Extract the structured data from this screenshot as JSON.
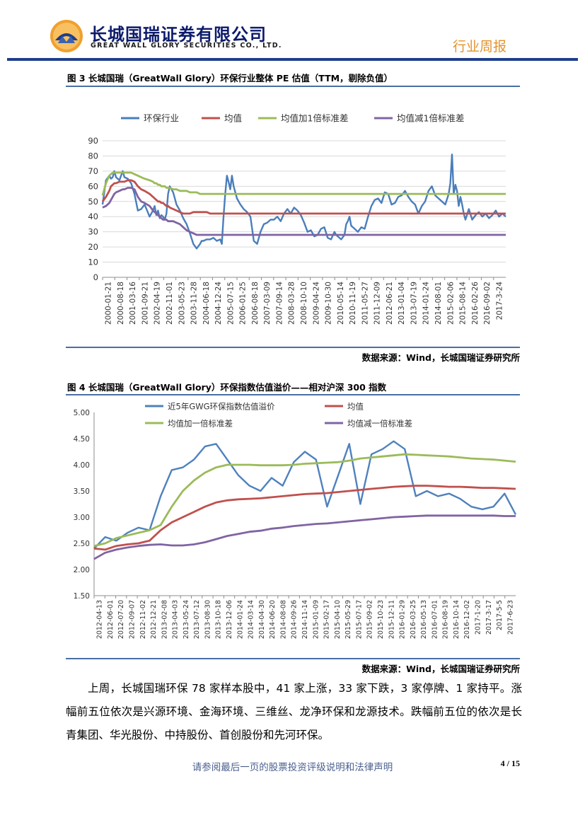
{
  "header": {
    "company_cn": "长城国瑞证券有限公司",
    "company_en": "GREAT WALL GLORY SECURITIES CO., LTD.",
    "report_type": "行业周报",
    "colors": {
      "brand_blue": "#1f3e8c",
      "accent_orange": "#e3932c"
    }
  },
  "figure3": {
    "title": "图 3 长城国瑞（GreatWall Glory）环保行业整体 PE 估值（TTM，剔除负值）",
    "source": "数据来源：Wind，长城国瑞证券研究所",
    "legend": [
      "环保行业",
      "均值",
      "均值加1倍标准差",
      "均值减1倍标准差"
    ]
  },
  "figure4": {
    "title": "图 4 长城国瑞（GreatWall Glory）环保指数估值溢价——相对沪深 300 指数",
    "source": "数据来源：Wind，长城国瑞证券研究所",
    "legend": [
      "近5年GWG环保指数估值溢价",
      "均值",
      "均值加一倍标准差",
      "均值减一倍标准差"
    ]
  },
  "body": {
    "paragraph": "上周，长城国瑞环保 78 家样本股中，41 家上涨，33 家下跌，3 家停牌、1 家持平。涨幅前五位依次是兴源环境、金海环境、三维丝、龙净环保和龙源技术。跌幅前五位的依次是长青集团、华光股份、中持股份、首创股份和先河环保。"
  },
  "footer": {
    "disclaimer": "请参阅最后一页的股票投资评级说明和法律声明",
    "page": "4 / 15"
  },
  "chart_data": [
    {
      "type": "line",
      "id": "fig3",
      "title": "环保行业整体 PE 估值（TTM，剔除负值）",
      "ylim": [
        0,
        90
      ],
      "yticks": [
        0,
        10,
        20,
        30,
        40,
        50,
        60,
        70,
        80,
        90
      ],
      "grid": true,
      "legend_position": "top",
      "categories": [
        "2000-01-21",
        "2000-08-18",
        "2001-03-16",
        "2001-09-21",
        "2002-04-19",
        "2002-11-01",
        "2003-05-23",
        "2003-11-28",
        "2004-06-18",
        "2004-12-24",
        "2005-07-15",
        "2006-01-25",
        "2006-08-18",
        "2007-03-09",
        "2007-09-14",
        "2008-03-28",
        "2008-10-10",
        "2009-04-24",
        "2009-10-30",
        "2010-05-14",
        "2010-11-19",
        "2011-05-27",
        "2011-12-09",
        "2012-06-21",
        "2013-01-04",
        "2013-07-19",
        "2014-01-24",
        "2014-08-01",
        "2015-02-06",
        "2015-08-14",
        "2016-02-26",
        "2016-09-02",
        "2017-3-24"
      ],
      "x": [
        0,
        2,
        4,
        5,
        6,
        7,
        8,
        10,
        12,
        13,
        15,
        17,
        19,
        21,
        23,
        25,
        28,
        30,
        31,
        32,
        33,
        34,
        35,
        36,
        37,
        38,
        39,
        40,
        42,
        44,
        46,
        48,
        50,
        52,
        54,
        56,
        58,
        59,
        60,
        62,
        64,
        66,
        68,
        70,
        71,
        72,
        73,
        74,
        75,
        76,
        77,
        78,
        80,
        82,
        84,
        86,
        88,
        90,
        92,
        94,
        96,
        98,
        100,
        102,
        104,
        106,
        108,
        110,
        112,
        114,
        116,
        118,
        120,
        122,
        124,
        126,
        128,
        130,
        132,
        134,
        136,
        138,
        139,
        140,
        142,
        144,
        145,
        146,
        147,
        148,
        150,
        152,
        154,
        156,
        158,
        160,
        162,
        164,
        166,
        168,
        170,
        172,
        174,
        176,
        178,
        180,
        182,
        184,
        186,
        188,
        190,
        192,
        194,
        196,
        198,
        200,
        202,
        204,
        206,
        207,
        208,
        209,
        210,
        211,
        212,
        213,
        214,
        215,
        216,
        218,
        220,
        222,
        224,
        226,
        228,
        230,
        232,
        234,
        236,
        238,
        240
      ],
      "series": [
        {
          "name": "环保行业",
          "color": "#4a7ebb",
          "values": [
            48,
            64,
            67,
            65,
            66,
            70,
            66,
            64,
            70,
            66,
            65,
            62,
            55,
            44,
            45,
            48,
            40,
            44,
            47,
            41,
            44,
            39,
            41,
            40,
            38,
            42,
            55,
            60,
            56,
            48,
            44,
            39,
            35,
            29,
            22,
            19,
            22,
            24,
            24,
            25,
            25,
            26,
            24,
            25,
            22,
            40,
            55,
            67,
            63,
            58,
            67,
            60,
            52,
            48,
            45,
            43,
            40,
            24,
            22,
            30,
            35,
            36,
            38,
            38,
            40,
            37,
            42,
            45,
            42,
            46,
            44,
            41,
            36,
            30,
            31,
            27,
            28,
            32,
            33,
            26,
            25,
            30,
            28,
            27,
            25,
            28,
            35,
            37,
            40,
            34,
            32,
            30,
            33,
            32,
            40,
            47,
            51,
            52,
            49,
            56,
            55,
            48,
            49,
            53,
            54,
            57,
            53,
            50,
            48,
            42,
            47,
            50,
            57,
            60,
            54,
            52,
            50,
            48,
            55,
            62,
            81,
            55,
            61,
            57,
            47,
            53,
            48,
            42,
            38,
            45,
            38,
            41,
            43,
            40,
            42,
            39,
            41,
            44,
            40,
            42,
            40
          ]
        },
        {
          "name": "均值",
          "color": "#c0504d",
          "values": [
            50,
            53,
            57,
            60,
            61,
            62,
            62,
            63,
            63,
            63,
            64,
            64,
            63,
            60,
            58,
            57,
            55,
            53,
            52,
            51,
            50,
            50,
            49,
            49,
            48,
            47,
            47,
            46,
            45,
            44,
            43,
            42,
            42,
            42,
            43,
            43,
            43,
            43,
            43,
            43,
            42,
            42,
            42,
            42,
            42,
            42,
            42,
            42,
            42,
            42,
            42,
            42,
            42,
            42,
            42,
            42,
            42,
            42,
            42,
            42,
            42,
            42,
            42,
            42,
            42,
            42,
            42,
            42,
            42,
            42,
            42,
            42,
            42,
            42,
            42,
            42,
            42,
            42,
            42,
            42,
            42,
            42,
            42,
            42,
            42,
            42,
            42,
            42,
            42,
            42,
            42,
            42,
            42,
            42,
            42,
            42,
            42,
            42,
            42,
            42,
            42,
            42,
            42,
            42,
            42,
            42,
            42,
            42,
            42,
            42,
            42,
            42,
            42,
            42,
            42,
            42,
            42,
            42,
            42,
            42,
            42,
            42,
            42,
            42,
            42,
            42,
            42,
            42,
            42,
            42,
            42,
            42,
            42,
            42,
            42,
            42,
            42,
            42,
            42,
            42,
            42
          ]
        },
        {
          "name": "均值加1倍标准差",
          "color": "#9bbb59",
          "values": [
            54,
            62,
            67,
            68,
            69,
            69,
            69,
            69,
            69,
            69,
            69,
            69,
            68,
            67,
            66,
            65,
            64,
            63,
            62,
            62,
            61,
            61,
            60,
            60,
            60,
            59,
            59,
            59,
            58,
            58,
            57,
            57,
            57,
            56,
            56,
            56,
            55,
            55,
            55,
            55,
            55,
            55,
            55,
            55,
            55,
            55,
            55,
            55,
            55,
            55,
            55,
            55,
            55,
            55,
            55,
            55,
            55,
            55,
            55,
            55,
            55,
            55,
            55,
            55,
            55,
            55,
            55,
            55,
            55,
            55,
            55,
            55,
            55,
            55,
            55,
            55,
            55,
            55,
            55,
            55,
            55,
            55,
            55,
            55,
            55,
            55,
            55,
            55,
            55,
            55,
            55,
            55,
            55,
            55,
            55,
            55,
            55,
            55,
            55,
            55,
            55,
            55,
            55,
            55,
            55,
            55,
            55,
            55,
            55,
            55,
            55,
            55,
            55,
            55,
            55,
            55,
            55,
            55,
            55,
            55,
            55,
            55,
            55,
            55,
            55,
            55,
            55,
            55,
            55,
            55,
            55,
            55,
            55,
            55,
            55,
            55,
            55,
            55,
            55,
            55,
            55
          ]
        },
        {
          "name": "均值减1倍标准差",
          "color": "#8064a2",
          "values": [
            46,
            47,
            49,
            51,
            53,
            55,
            56,
            57,
            58,
            58,
            59,
            59,
            58,
            53,
            50,
            49,
            47,
            44,
            43,
            42,
            41,
            40,
            39,
            38,
            38,
            38,
            37,
            37,
            37,
            36,
            35,
            33,
            31,
            30,
            29,
            28,
            28,
            28,
            28,
            28,
            28,
            28,
            28,
            28,
            28,
            28,
            28,
            28,
            28,
            28,
            28,
            28,
            28,
            28,
            28,
            28,
            28,
            28,
            28,
            28,
            28,
            28,
            28,
            28,
            28,
            28,
            28,
            28,
            28,
            28,
            28,
            28,
            28,
            28,
            28,
            28,
            28,
            28,
            28,
            28,
            28,
            28,
            28,
            28,
            28,
            28,
            28,
            28,
            28,
            28,
            28,
            28,
            28,
            28,
            28,
            28,
            28,
            28,
            28,
            28,
            28,
            28,
            28,
            28,
            28,
            28,
            28,
            28,
            28,
            28,
            28,
            28,
            28,
            28,
            28,
            28,
            28,
            28,
            28,
            28,
            28,
            28,
            28,
            28,
            28,
            28,
            28,
            28,
            28,
            28,
            28,
            28,
            28,
            28,
            28,
            28,
            28,
            28,
            28,
            28,
            28
          ]
        }
      ]
    },
    {
      "type": "line",
      "id": "fig4",
      "title": "环保指数估值溢价——相对沪深 300 指数",
      "ylim": [
        1.5,
        5.0
      ],
      "yticks": [
        "1.50",
        "2.00",
        "2.50",
        "3.00",
        "3.50",
        "4.00",
        "4.50",
        "5.00"
      ],
      "grid": false,
      "legend_position": "top",
      "categories": [
        "2012-04-13",
        "2012-06-01",
        "2012-07-20",
        "2012-09-07",
        "2012-11-02",
        "2012-12-21",
        "2013-02-08",
        "2013-04-03",
        "2013-05-24",
        "2013-07-12",
        "2013-08-30",
        "2013-10-18",
        "2013-12-06",
        "2014-01-24",
        "2014-03-14",
        "2014-04-30",
        "2014-06-20",
        "2014-08-08",
        "2014-09-26",
        "2014-11-14",
        "2015-01-09",
        "2015-02-17",
        "2015-04-10",
        "2015-05-29",
        "2015-07-17",
        "2015-09-02",
        "2015-10-23",
        "2015-12-11",
        "2016-01-29",
        "2016-03-25",
        "2016-05-13",
        "2016-07-01",
        "2016-08-19",
        "2016-10-14",
        "2016-12-02",
        "2017-1-20",
        "2017-3-17",
        "2017-5-5",
        "2017-6-23"
      ],
      "x": [
        0,
        1,
        2,
        3,
        4,
        5,
        6,
        7,
        8,
        9,
        10,
        11,
        12,
        13,
        14,
        15,
        16,
        17,
        18,
        19,
        20,
        21,
        22,
        23,
        24,
        25,
        26,
        27,
        28,
        29,
        30,
        31,
        32,
        33,
        34,
        35,
        36,
        37,
        38
      ],
      "series": [
        {
          "name": "近5年GWG环保指数估值溢价",
          "color": "#4f81bd",
          "values": [
            2.4,
            2.62,
            2.55,
            2.7,
            2.8,
            2.75,
            3.4,
            3.9,
            3.95,
            4.1,
            4.35,
            4.4,
            4.1,
            3.8,
            3.6,
            3.5,
            3.75,
            3.6,
            4.05,
            4.25,
            4.1,
            3.2,
            3.8,
            4.4,
            3.25,
            4.2,
            4.3,
            4.45,
            4.3,
            3.4,
            3.5,
            3.4,
            3.45,
            3.35,
            3.2,
            3.15,
            3.2,
            3.45,
            3.05
          ]
        },
        {
          "name": "均值",
          "color": "#c0504d",
          "values": [
            2.4,
            2.38,
            2.45,
            2.48,
            2.5,
            2.55,
            2.75,
            2.9,
            3.0,
            3.1,
            3.2,
            3.28,
            3.32,
            3.34,
            3.35,
            3.36,
            3.38,
            3.4,
            3.42,
            3.44,
            3.45,
            3.46,
            3.48,
            3.5,
            3.52,
            3.54,
            3.56,
            3.58,
            3.59,
            3.6,
            3.6,
            3.59,
            3.58,
            3.58,
            3.57,
            3.56,
            3.56,
            3.55,
            3.54
          ]
        },
        {
          "name": "均值加一倍标准差",
          "color": "#9bbb59",
          "values": [
            2.45,
            2.5,
            2.6,
            2.65,
            2.7,
            2.75,
            2.85,
            3.2,
            3.5,
            3.7,
            3.85,
            3.95,
            4.0,
            4.0,
            4.0,
            3.99,
            3.99,
            3.99,
            4.0,
            4.02,
            4.03,
            4.04,
            4.05,
            4.08,
            4.12,
            4.14,
            4.16,
            4.18,
            4.2,
            4.19,
            4.18,
            4.17,
            4.16,
            4.14,
            4.12,
            4.11,
            4.1,
            4.08,
            4.06
          ]
        },
        {
          "name": "均值减一倍标准差",
          "color": "#8064a2",
          "values": [
            2.2,
            2.32,
            2.38,
            2.42,
            2.45,
            2.47,
            2.48,
            2.46,
            2.46,
            2.48,
            2.52,
            2.58,
            2.64,
            2.68,
            2.72,
            2.74,
            2.78,
            2.8,
            2.83,
            2.85,
            2.87,
            2.88,
            2.9,
            2.92,
            2.94,
            2.96,
            2.98,
            3.0,
            3.01,
            3.02,
            3.03,
            3.03,
            3.03,
            3.03,
            3.03,
            3.03,
            3.03,
            3.02,
            3.02
          ]
        }
      ]
    }
  ]
}
